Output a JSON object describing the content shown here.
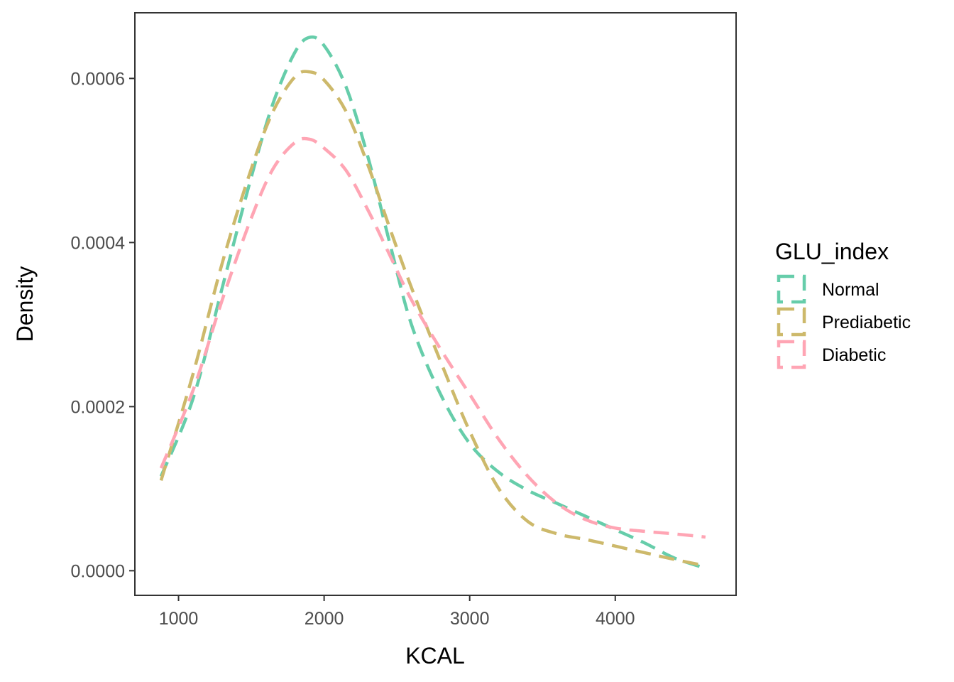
{
  "chart_data": {
    "type": "line",
    "xlabel": "KCAL",
    "ylabel": "Density",
    "xlim": [
      700,
      4830
    ],
    "ylim": [
      -3e-05,
      0.00068
    ],
    "x_ticks": [
      1000,
      2000,
      3000,
      4000
    ],
    "x_tick_labels": [
      "1000",
      "2000",
      "3000",
      "4000"
    ],
    "y_ticks": [
      0,
      0.0002,
      0.0004,
      0.0006
    ],
    "y_tick_labels": [
      "0.0000",
      "0.0002",
      "0.0004",
      "0.0006"
    ],
    "grid": false,
    "legend": {
      "title": "GLU_index",
      "placement": "right"
    },
    "series": [
      {
        "name": "Normal",
        "color": "#66CDAA",
        "x": [
          880,
          1100,
          1300,
          1500,
          1650,
          1800,
          1900,
          2000,
          2150,
          2300,
          2450,
          2600,
          2800,
          3000,
          3200,
          3400,
          3600,
          3800,
          4000,
          4200,
          4400,
          4620
        ],
        "y": [
          0.000115,
          0.00021,
          0.000345,
          0.00048,
          0.00057,
          0.000632,
          0.00065,
          0.00064,
          0.00059,
          0.000505,
          0.0004,
          0.0003,
          0.000215,
          0.000155,
          0.00012,
          9.8e-05,
          8.2e-05,
          6.6e-05,
          5e-05,
          3.4e-05,
          1.6e-05,
          3e-06
        ]
      },
      {
        "name": "Prediabetic",
        "color": "#CDB96B",
        "x": [
          880,
          1100,
          1300,
          1500,
          1650,
          1800,
          1900,
          2000,
          2150,
          2300,
          2450,
          2600,
          2800,
          3000,
          3200,
          3400,
          3600,
          3800,
          4000,
          4200,
          4400,
          4620
        ],
        "y": [
          0.00011,
          0.00024,
          0.000375,
          0.00049,
          0.00056,
          0.000602,
          0.000608,
          0.000598,
          0.00056,
          0.000495,
          0.000418,
          0.000345,
          0.000255,
          0.00017,
          0.0001,
          6e-05,
          4.5e-05,
          3.8e-05,
          3e-05,
          2.2e-05,
          1.4e-05,
          6e-06
        ]
      },
      {
        "name": "Diabetic",
        "color": "#FFA5B4",
        "x": [
          880,
          1100,
          1300,
          1500,
          1650,
          1800,
          1900,
          2000,
          2150,
          2300,
          2450,
          2600,
          2800,
          3000,
          3200,
          3400,
          3600,
          3800,
          4000,
          4200,
          4400,
          4620
        ],
        "y": [
          0.000125,
          0.00022,
          0.00033,
          0.00043,
          0.00049,
          0.000522,
          0.000526,
          0.000515,
          0.000488,
          0.00044,
          0.000385,
          0.00033,
          0.00027,
          0.000215,
          0.00016,
          0.000115,
          8.2e-05,
          6.2e-05,
          5.2e-05,
          4.8e-05,
          4.5e-05,
          4.1e-05
        ]
      }
    ]
  }
}
